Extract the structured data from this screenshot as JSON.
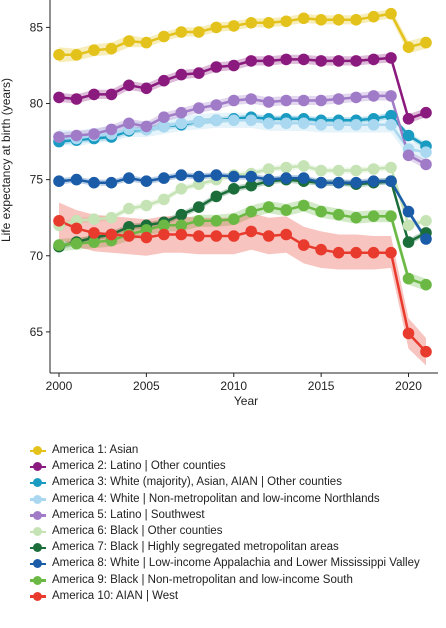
{
  "chart_data": {
    "type": "line",
    "title": "",
    "xlabel": "Year",
    "ylabel": "Life expectancy at birth (years)",
    "xlim": [
      2000,
      2021
    ],
    "ylim": [
      62.3,
      86.8
    ],
    "xticks": [
      "2000",
      "2005",
      "2010",
      "2015",
      "2020"
    ],
    "yticks": [
      "65",
      "70",
      "75",
      "80",
      "85"
    ],
    "x": [
      2000,
      2001,
      2002,
      2003,
      2004,
      2005,
      2006,
      2007,
      2008,
      2009,
      2010,
      2011,
      2012,
      2013,
      2014,
      2015,
      2016,
      2017,
      2018,
      2019,
      2020,
      2021
    ],
    "grid": false,
    "legend_position": "bottom",
    "series": [
      {
        "name": "America 1: Asian",
        "color": "#e3c21b",
        "values": [
          83.2,
          83.2,
          83.5,
          83.6,
          84.1,
          84.0,
          84.4,
          84.7,
          84.7,
          85.0,
          85.1,
          85.3,
          85.3,
          85.4,
          85.6,
          85.5,
          85.5,
          85.5,
          85.7,
          85.9,
          83.7,
          84.0
        ],
        "lower": [
          82.7,
          82.8,
          83.1,
          83.2,
          83.7,
          83.7,
          84.1,
          84.4,
          84.4,
          84.7,
          84.8,
          85.0,
          85.0,
          85.1,
          85.3,
          85.2,
          85.2,
          85.2,
          85.4,
          85.6,
          83.3,
          83.6
        ],
        "upper": [
          83.7,
          83.6,
          83.9,
          84.0,
          84.5,
          84.3,
          84.7,
          85.0,
          85.0,
          85.3,
          85.4,
          85.6,
          85.6,
          85.7,
          85.9,
          85.8,
          85.8,
          85.8,
          86.0,
          86.2,
          84.1,
          84.4
        ]
      },
      {
        "name": "America 2: Latino | Other counties",
        "color": "#8b1a7e",
        "values": [
          80.4,
          80.3,
          80.6,
          80.6,
          81.2,
          81.0,
          81.5,
          81.9,
          82.0,
          82.4,
          82.5,
          82.8,
          82.8,
          82.9,
          82.9,
          82.8,
          82.8,
          82.8,
          82.9,
          83.0,
          79.0,
          79.4
        ],
        "lower": [
          80.1,
          80.0,
          80.3,
          80.3,
          80.9,
          80.7,
          81.2,
          81.6,
          81.7,
          82.1,
          82.2,
          82.5,
          82.5,
          82.6,
          82.6,
          82.5,
          82.5,
          82.5,
          82.6,
          82.7,
          78.7,
          79.1
        ],
        "upper": [
          80.7,
          80.6,
          80.9,
          80.9,
          81.5,
          81.3,
          81.8,
          82.2,
          82.3,
          82.7,
          82.8,
          83.1,
          83.1,
          83.2,
          83.2,
          83.1,
          83.1,
          83.1,
          83.2,
          83.3,
          79.3,
          79.7
        ]
      },
      {
        "name": "America 3: White (majority), Asian, AIAN | Other counties",
        "color": "#1a9bc2",
        "values": [
          77.5,
          77.6,
          77.7,
          77.8,
          78.2,
          78.3,
          78.5,
          78.6,
          78.8,
          78.9,
          79.0,
          79.1,
          79.0,
          79.0,
          79.0,
          78.9,
          78.9,
          78.9,
          79.0,
          79.2,
          77.9,
          77.2
        ],
        "lower": [
          77.3,
          77.4,
          77.5,
          77.6,
          78.0,
          78.1,
          78.3,
          78.4,
          78.6,
          78.7,
          78.8,
          78.9,
          78.8,
          78.8,
          78.8,
          78.7,
          78.7,
          78.7,
          78.8,
          79.0,
          77.7,
          77.0
        ],
        "upper": [
          77.7,
          77.8,
          77.9,
          78.0,
          78.4,
          78.5,
          78.7,
          78.8,
          79.0,
          79.1,
          79.2,
          79.3,
          79.2,
          79.2,
          79.2,
          79.1,
          79.1,
          79.1,
          79.2,
          79.4,
          78.1,
          77.4
        ]
      },
      {
        "name": "America 4: White | Non-metropolitan and low-income Northlands",
        "color": "#a9d8f0",
        "values": [
          77.8,
          77.7,
          77.9,
          78.0,
          78.3,
          78.3,
          78.5,
          78.7,
          78.8,
          78.9,
          78.9,
          78.9,
          78.7,
          78.7,
          78.7,
          78.6,
          78.6,
          78.6,
          78.6,
          78.6,
          77.0,
          76.8
        ],
        "lower": [
          77.3,
          77.2,
          77.4,
          77.5,
          77.8,
          77.8,
          78.0,
          78.2,
          78.3,
          78.4,
          78.4,
          78.4,
          78.2,
          78.2,
          78.2,
          78.1,
          78.1,
          78.1,
          78.1,
          78.1,
          76.5,
          76.3
        ],
        "upper": [
          78.3,
          78.2,
          78.4,
          78.5,
          78.8,
          78.8,
          79.0,
          79.2,
          79.3,
          79.4,
          79.4,
          79.4,
          79.2,
          79.2,
          79.2,
          79.1,
          79.1,
          79.1,
          79.1,
          79.1,
          77.5,
          77.3
        ]
      },
      {
        "name": "America 5: Latino | Southwest",
        "color": "#a07bc8",
        "values": [
          77.8,
          77.9,
          78.0,
          78.3,
          78.7,
          78.5,
          79.1,
          79.4,
          79.7,
          79.9,
          80.2,
          80.3,
          80.1,
          80.2,
          80.2,
          80.2,
          80.3,
          80.4,
          80.5,
          80.5,
          76.6,
          76.0
        ],
        "lower": [
          77.5,
          77.6,
          77.7,
          78.0,
          78.4,
          78.2,
          78.8,
          79.1,
          79.4,
          79.6,
          79.9,
          80.0,
          79.8,
          79.9,
          79.9,
          79.9,
          80.0,
          80.1,
          80.2,
          80.2,
          76.3,
          75.7
        ],
        "upper": [
          78.1,
          78.2,
          78.3,
          78.6,
          79.0,
          78.8,
          79.4,
          79.7,
          80.0,
          80.2,
          80.5,
          80.6,
          80.4,
          80.5,
          80.5,
          80.5,
          80.6,
          80.7,
          80.8,
          80.8,
          76.9,
          76.3
        ]
      },
      {
        "name": "America 6: Black | Other counties",
        "color": "#c5e3b4",
        "values": [
          72.0,
          72.3,
          72.4,
          72.5,
          73.1,
          73.3,
          73.7,
          74.4,
          74.7,
          75.0,
          75.3,
          75.4,
          75.7,
          75.8,
          75.9,
          75.6,
          75.6,
          75.6,
          75.7,
          75.8,
          72.0,
          72.3
        ],
        "lower": [
          71.8,
          72.1,
          72.2,
          72.3,
          72.9,
          73.1,
          73.5,
          74.2,
          74.5,
          74.8,
          75.1,
          75.2,
          75.5,
          75.6,
          75.7,
          75.4,
          75.4,
          75.4,
          75.5,
          75.6,
          71.8,
          72.1
        ],
        "upper": [
          72.2,
          72.5,
          72.6,
          72.7,
          73.3,
          73.5,
          73.9,
          74.6,
          74.9,
          75.2,
          75.5,
          75.6,
          75.9,
          76.0,
          76.1,
          75.8,
          75.8,
          75.8,
          75.9,
          76.0,
          72.2,
          72.5
        ]
      },
      {
        "name": "America 7: Black | Highly segregated metropolitan areas",
        "color": "#1b6e3a",
        "values": [
          70.6,
          70.9,
          71.2,
          71.4,
          71.9,
          72.0,
          72.2,
          72.7,
          73.2,
          73.9,
          74.4,
          74.6,
          74.9,
          75.0,
          74.9,
          74.8,
          74.8,
          74.7,
          74.8,
          74.9,
          70.9,
          71.5
        ],
        "lower": [
          70.4,
          70.7,
          71.0,
          71.2,
          71.7,
          71.8,
          72.0,
          72.5,
          73.0,
          73.7,
          74.2,
          74.4,
          74.7,
          74.8,
          74.7,
          74.6,
          74.6,
          74.5,
          74.6,
          74.7,
          70.7,
          71.3
        ],
        "upper": [
          70.8,
          71.1,
          71.4,
          71.6,
          72.1,
          72.2,
          72.4,
          72.9,
          73.4,
          74.1,
          74.6,
          74.8,
          75.1,
          75.2,
          75.1,
          75.0,
          75.0,
          74.9,
          75.0,
          75.1,
          71.1,
          71.7
        ]
      },
      {
        "name": "America 8: White | Low-income Appalachia and Lower Mississippi Valley",
        "color": "#1a5ca8",
        "values": [
          74.9,
          75.0,
          74.8,
          74.8,
          75.1,
          74.9,
          75.1,
          75.3,
          75.2,
          75.3,
          75.2,
          75.2,
          75.0,
          75.1,
          75.1,
          74.8,
          74.8,
          74.8,
          74.9,
          74.9,
          72.9,
          71.1
        ],
        "lower": [
          74.7,
          74.8,
          74.6,
          74.6,
          74.9,
          74.7,
          74.9,
          75.1,
          75.0,
          75.1,
          75.0,
          75.0,
          74.8,
          74.9,
          74.9,
          74.6,
          74.6,
          74.6,
          74.7,
          74.7,
          72.7,
          70.9
        ],
        "upper": [
          75.1,
          75.2,
          75.0,
          75.0,
          75.3,
          75.1,
          75.3,
          75.5,
          75.4,
          75.5,
          75.4,
          75.4,
          75.2,
          75.3,
          75.3,
          75.0,
          75.0,
          75.0,
          75.1,
          75.1,
          73.1,
          71.3
        ]
      },
      {
        "name": "America 9: Black | Non-metropolitan and low-income South",
        "color": "#6bb944",
        "values": [
          70.7,
          70.8,
          70.9,
          71.0,
          71.4,
          71.7,
          72.0,
          72.0,
          72.3,
          72.3,
          72.4,
          72.9,
          73.2,
          73.0,
          73.3,
          72.9,
          72.7,
          72.5,
          72.6,
          72.6,
          68.5,
          68.1
        ],
        "lower": [
          70.3,
          70.4,
          70.5,
          70.6,
          71.0,
          71.3,
          71.6,
          71.6,
          71.9,
          71.9,
          72.0,
          72.5,
          72.8,
          72.6,
          72.9,
          72.5,
          72.3,
          72.1,
          72.2,
          72.2,
          68.1,
          67.7
        ],
        "upper": [
          71.1,
          71.2,
          71.3,
          71.4,
          71.8,
          72.1,
          72.4,
          72.4,
          72.7,
          72.7,
          72.8,
          73.3,
          73.6,
          73.4,
          73.7,
          73.3,
          73.1,
          72.9,
          73.0,
          73.0,
          68.9,
          68.5
        ]
      },
      {
        "name": "America 10: AIAN | West",
        "color": "#e83a2d",
        "values": [
          72.3,
          71.8,
          71.5,
          71.4,
          71.3,
          71.2,
          71.4,
          71.4,
          71.3,
          71.3,
          71.3,
          71.6,
          71.3,
          71.4,
          70.7,
          70.4,
          70.2,
          70.2,
          70.2,
          70.2,
          64.9,
          63.7
        ],
        "lower": [
          71.1,
          70.6,
          70.3,
          70.2,
          70.1,
          70.0,
          70.2,
          70.2,
          70.1,
          70.1,
          70.1,
          70.4,
          70.1,
          70.2,
          69.5,
          69.2,
          69.1,
          69.1,
          69.1,
          69.2,
          63.9,
          62.8
        ],
        "upper": [
          73.5,
          73.0,
          72.7,
          72.6,
          72.5,
          72.4,
          72.6,
          72.6,
          72.5,
          72.5,
          72.5,
          72.8,
          72.5,
          72.6,
          71.9,
          71.6,
          71.4,
          71.4,
          71.3,
          71.3,
          65.9,
          64.6
        ]
      }
    ]
  }
}
